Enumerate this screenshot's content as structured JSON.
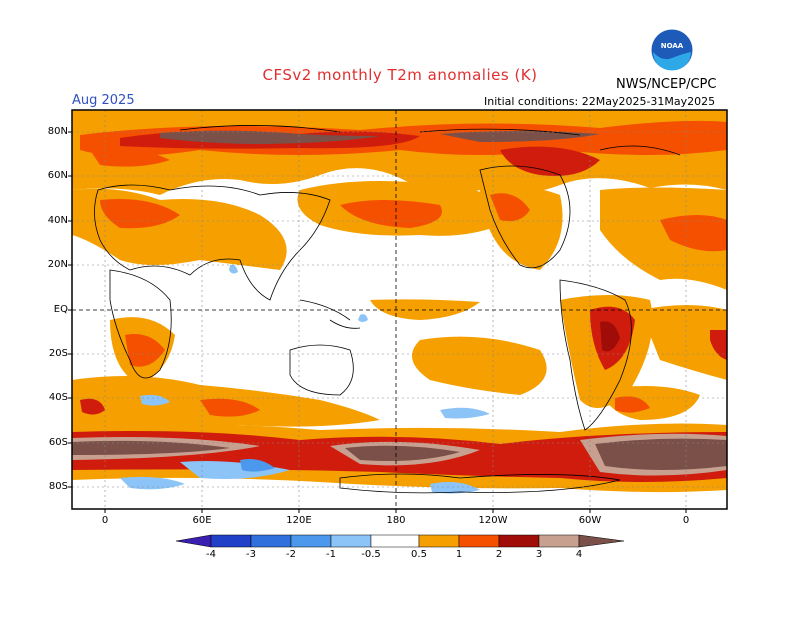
{
  "title": "CFSv2 monthly T2m anomalies (K)",
  "month": "Aug 2025",
  "initial_conditions": "Initial conditions: 22May2025-31May2025",
  "agency": "NWS/NCEP/CPC",
  "logo_text": "NOAA",
  "lat_labels": [
    "80N",
    "60N",
    "40N",
    "20N",
    "EQ",
    "20S",
    "40S",
    "60S",
    "80S"
  ],
  "lon_labels": [
    "0",
    "60E",
    "120E",
    "180",
    "120W",
    "60W",
    "0"
  ],
  "colorbar": {
    "labels": [
      "-4",
      "-3",
      "-2",
      "-1",
      "-0.5",
      "0.5",
      "1",
      "2",
      "3",
      "4"
    ],
    "colors": [
      "#3a1fb0",
      "#2040c8",
      "#3070dc",
      "#4c98ec",
      "#8cc4f8",
      "#ffffff",
      "#f5a000",
      "#f55000",
      "#d01c0c",
      "#a00c08",
      "#c8a090",
      "#7a5048"
    ]
  }
}
